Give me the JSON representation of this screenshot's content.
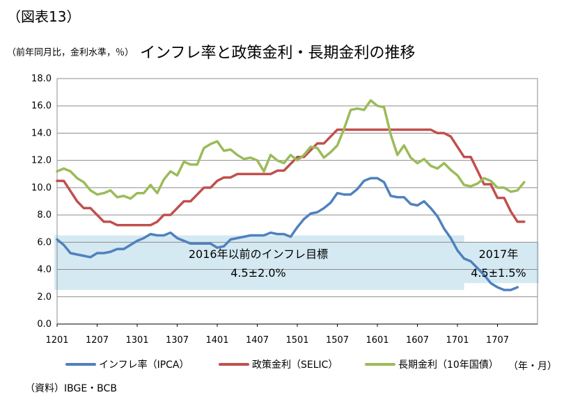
{
  "figure_label": "（図表13）",
  "units_text": "（前年同月比，金利水準，％）",
  "title": "インフレ率と政策金利・長期金利の推移",
  "source": "（資料）IBGE・BCB",
  "x_axis_unit": "（年・月）",
  "bands": [
    {
      "label": "2016年以前のインフレ目標",
      "value_text": "4.5±2.0%",
      "y_range": [
        2.5,
        6.5
      ],
      "x_range_index": [
        0,
        61
      ]
    },
    {
      "label": "2017年",
      "value_text": "4.5±1.5%",
      "y_range": [
        3.0,
        6.0
      ],
      "x_range_index": [
        61,
        73
      ]
    }
  ],
  "chart_data": {
    "type": "line",
    "title": "インフレ率と政策金利・長期金利の推移",
    "xlabel": "（年・月）",
    "ylabel": "（前年同月比，金利水準，％）",
    "ylim": [
      0,
      18
    ],
    "y_ticks": [
      "0.0",
      "2.0",
      "4.0",
      "6.0",
      "8.0",
      "10.0",
      "12.0",
      "14.0",
      "16.0",
      "18.0"
    ],
    "x_tick_labels": [
      "1201",
      "1207",
      "1301",
      "1307",
      "1401",
      "1407",
      "1501",
      "1507",
      "1601",
      "1607",
      "1701",
      "1707"
    ],
    "x_tick_indices": [
      0,
      6,
      12,
      18,
      24,
      30,
      36,
      42,
      48,
      54,
      60,
      66
    ],
    "x_count": 73,
    "grid": true,
    "legend_position": "bottom",
    "series": [
      {
        "name": "インフレ率（IPCA）",
        "color": "#4f81bd",
        "values": [
          6.2,
          5.8,
          5.2,
          5.1,
          5.0,
          4.9,
          5.2,
          5.2,
          5.3,
          5.5,
          5.5,
          5.8,
          6.1,
          6.3,
          6.6,
          6.5,
          6.5,
          6.7,
          6.3,
          6.1,
          5.9,
          5.9,
          5.9,
          5.9,
          5.6,
          5.7,
          6.2,
          6.3,
          6.4,
          6.5,
          6.5,
          6.5,
          6.7,
          6.6,
          6.6,
          6.4,
          7.1,
          7.7,
          8.1,
          8.2,
          8.5,
          8.9,
          9.6,
          9.5,
          9.5,
          9.9,
          10.5,
          10.7,
          10.7,
          10.4,
          9.4,
          9.3,
          9.3,
          8.8,
          8.7,
          9.0,
          8.5,
          7.9,
          7.0,
          6.3,
          5.4,
          4.8,
          4.6,
          4.1,
          3.6,
          3.0,
          2.7,
          2.5,
          2.5,
          2.7
        ]
      },
      {
        "name": "政策金利（SELIC）",
        "color": "#c0504d",
        "values": [
          10.5,
          10.5,
          9.75,
          9.0,
          8.5,
          8.5,
          8.0,
          7.5,
          7.5,
          7.25,
          7.25,
          7.25,
          7.25,
          7.25,
          7.25,
          7.5,
          8.0,
          8.0,
          8.5,
          9.0,
          9.0,
          9.5,
          10.0,
          10.0,
          10.5,
          10.75,
          10.75,
          11.0,
          11.0,
          11.0,
          11.0,
          11.0,
          11.0,
          11.25,
          11.25,
          11.75,
          12.25,
          12.25,
          12.75,
          13.25,
          13.25,
          13.75,
          14.25,
          14.25,
          14.25,
          14.25,
          14.25,
          14.25,
          14.25,
          14.25,
          14.25,
          14.25,
          14.25,
          14.25,
          14.25,
          14.25,
          14.25,
          14.0,
          14.0,
          13.75,
          13.0,
          12.25,
          12.25,
          11.25,
          10.25,
          10.25,
          9.25,
          9.25,
          8.25,
          7.5,
          7.5
        ]
      },
      {
        "name": "長期金利（10年国債）",
        "color": "#9bbb59",
        "values": [
          11.2,
          11.4,
          11.2,
          10.7,
          10.4,
          9.8,
          9.5,
          9.6,
          9.8,
          9.3,
          9.4,
          9.2,
          9.6,
          9.6,
          10.2,
          9.6,
          10.6,
          11.2,
          10.9,
          11.9,
          11.7,
          11.7,
          12.9,
          13.2,
          13.4,
          12.7,
          12.8,
          12.4,
          12.1,
          12.2,
          12.0,
          11.2,
          12.4,
          12.0,
          11.8,
          12.4,
          12.0,
          12.4,
          13.0,
          12.9,
          12.2,
          12.6,
          13.1,
          14.3,
          15.7,
          15.8,
          15.7,
          16.4,
          16.0,
          15.9,
          13.9,
          12.4,
          13.1,
          12.2,
          11.8,
          12.1,
          11.6,
          11.4,
          11.8,
          11.3,
          10.9,
          10.2,
          10.1,
          10.3,
          10.7,
          10.5,
          10.0,
          10.0,
          9.7,
          9.8,
          10.4
        ]
      }
    ]
  }
}
